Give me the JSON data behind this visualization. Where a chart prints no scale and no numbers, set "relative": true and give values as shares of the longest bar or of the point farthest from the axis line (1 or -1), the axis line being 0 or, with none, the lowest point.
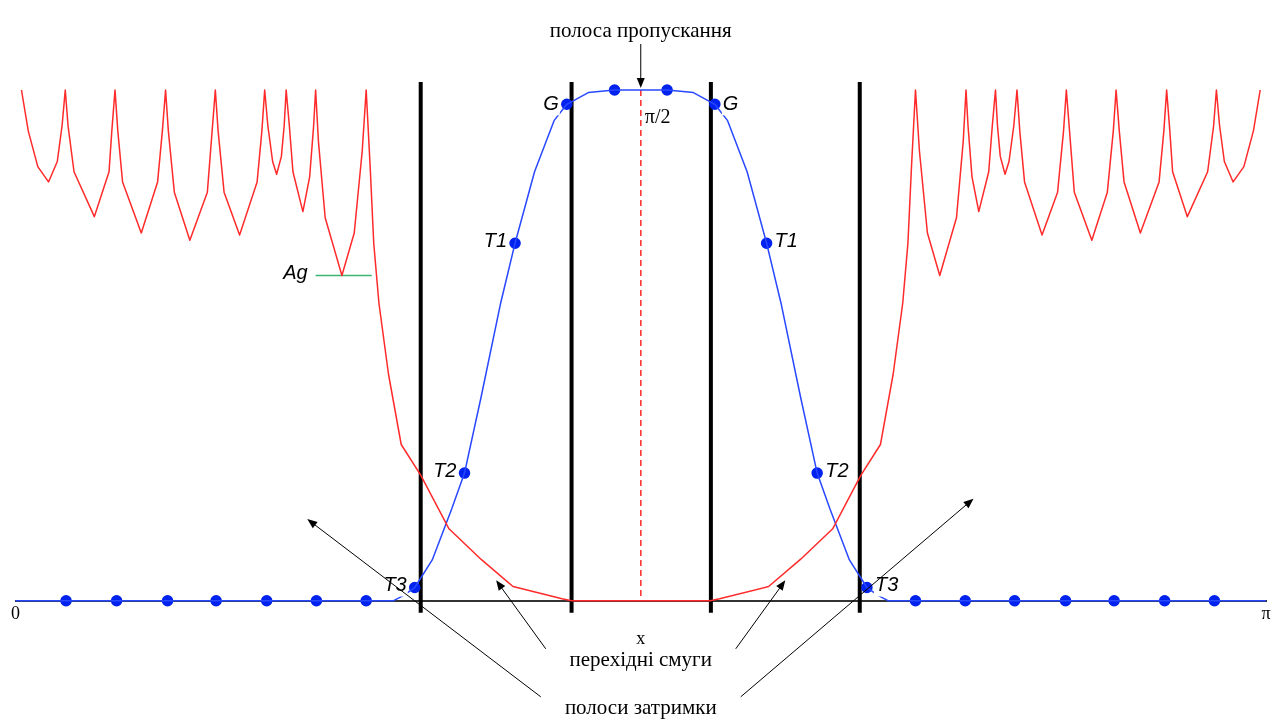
{
  "chart_data": {
    "type": "line",
    "relative": true,
    "xlabel": "x",
    "xlim": [
      0,
      3.1416
    ],
    "xticks": [
      {
        "value": 0,
        "label": "0"
      },
      {
        "value": 3.1416,
        "label": "π"
      }
    ],
    "grid": false,
    "legend": false,
    "series": [
      {
        "type": "line",
        "color": "#ff2a2a",
        "marker": "none",
        "x": [
          0.015,
          0.032,
          0.056,
          0.083,
          0.105,
          0.117,
          0.125,
          0.132,
          0.147,
          0.198,
          0.235,
          0.242,
          0.25,
          0.257,
          0.269,
          0.316,
          0.357,
          0.369,
          0.377,
          0.384,
          0.399,
          0.438,
          0.482,
          0.494,
          0.502,
          0.509,
          0.524,
          0.563,
          0.607,
          0.619,
          0.626,
          0.634,
          0.646,
          0.656,
          0.668,
          0.675,
          0.68,
          0.688,
          0.697,
          0.722,
          0.739,
          0.749,
          0.754,
          0.761,
          0.778,
          0.82,
          0.851,
          0.871,
          0.881,
          0.891,
          0.9,
          0.913,
          0.937,
          0.969,
          1.018,
          1.089,
          1.17,
          1.25,
          1.373,
          1.397,
          1.571,
          1.745,
          1.769,
          1.892,
          1.972,
          2.053,
          2.124,
          2.173,
          2.205,
          2.229,
          2.242,
          2.251,
          2.261,
          2.271,
          2.291,
          2.322,
          2.364,
          2.381,
          2.388,
          2.393,
          2.403,
          2.42,
          2.445,
          2.454,
          2.462,
          2.467,
          2.474,
          2.486,
          2.496,
          2.508,
          2.516,
          2.523,
          2.535,
          2.579,
          2.618,
          2.633,
          2.64,
          2.648,
          2.66,
          2.704,
          2.743,
          2.758,
          2.765,
          2.773,
          2.785,
          2.826,
          2.873,
          2.885,
          2.892,
          2.9,
          2.907,
          2.944,
          2.995,
          3.01,
          3.017,
          3.025,
          3.037,
          3.059,
          3.086,
          3.11,
          3.127
        ],
        "values": [
          1,
          0.92,
          0.85,
          0.82,
          0.86,
          0.93,
          1,
          0.93,
          0.84,
          0.752,
          0.84,
          0.92,
          1,
          0.92,
          0.82,
          0.72,
          0.82,
          0.92,
          1,
          0.92,
          0.8,
          0.706,
          0.8,
          0.92,
          1,
          0.92,
          0.8,
          0.716,
          0.82,
          0.92,
          1,
          0.93,
          0.86,
          0.835,
          0.87,
          0.93,
          1,
          0.93,
          0.84,
          0.762,
          0.83,
          0.93,
          1,
          0.9,
          0.75,
          0.637,
          0.72,
          0.88,
          1,
          0.85,
          0.7,
          0.583,
          0.444,
          0.306,
          0.246,
          0.141,
          0.081,
          0.028,
          0.004,
          0,
          0,
          0,
          0.004,
          0.028,
          0.081,
          0.141,
          0.246,
          0.306,
          0.444,
          0.583,
          0.7,
          0.85,
          1,
          0.88,
          0.72,
          0.637,
          0.75,
          0.9,
          1,
          0.93,
          0.83,
          0.762,
          0.84,
          0.93,
          1,
          0.93,
          0.87,
          0.835,
          0.86,
          0.93,
          1,
          0.92,
          0.82,
          0.716,
          0.8,
          0.92,
          1,
          0.92,
          0.8,
          0.706,
          0.8,
          0.92,
          1,
          0.92,
          0.82,
          0.72,
          0.82,
          0.92,
          1,
          0.92,
          0.84,
          0.752,
          0.84,
          0.93,
          1,
          0.93,
          0.86,
          0.82,
          0.85,
          0.92,
          1
        ]
      },
      {
        "type": "line",
        "color": "#2848ff",
        "marker": "none",
        "x": [
          0,
          0.949,
          0.974,
          1.003,
          1.047,
          1.096,
          1.128,
          1.17,
          1.218,
          1.255,
          1.304,
          1.353,
          1.385,
          1.439,
          1.505,
          1.571,
          1.637,
          1.703,
          1.757,
          1.789,
          1.838,
          1.887,
          1.924,
          1.972,
          2.014,
          2.046,
          2.095,
          2.139,
          2.168,
          2.193,
          3.141
        ],
        "values": [
          0,
          0,
          0.01,
          0.026,
          0.08,
          0.18,
          0.25,
          0.4,
          0.58,
          0.7,
          0.84,
          0.94,
          0.972,
          0.995,
          1,
          1,
          1,
          0.995,
          0.972,
          0.94,
          0.84,
          0.7,
          0.58,
          0.4,
          0.25,
          0.18,
          0.08,
          0.026,
          0.01,
          0,
          0
        ]
      },
      {
        "type": "scatter",
        "color": "#0022ee",
        "marker": "circle",
        "x": [
          0.127,
          0.254,
          0.382,
          0.504,
          0.631,
          0.756,
          0.881,
          1.003,
          1.128,
          1.255,
          1.385,
          1.505,
          1.637,
          1.757,
          1.887,
          2.014,
          2.139,
          2.261,
          2.386,
          2.51,
          2.638,
          2.76,
          2.887,
          3.012
        ],
        "values": [
          0,
          0,
          0,
          0,
          0,
          0,
          0,
          0.026,
          0.25,
          0.7,
          0.972,
          1,
          1,
          0.972,
          0.7,
          0.25,
          0.026,
          0,
          0,
          0,
          0,
          0,
          0,
          0
        ]
      },
      {
        "type": "line",
        "color": "#3cb371",
        "marker": "none",
        "x": [
          0.754,
          0.895
        ],
        "values": [
          0.637,
          0.637
        ]
      }
    ],
    "ref_lines": [
      {
        "axis": "x",
        "value": 1.018,
        "color": "#000000"
      },
      {
        "axis": "x",
        "value": 1.397,
        "color": "#000000"
      },
      {
        "axis": "x",
        "value": 1.571,
        "label": "π/2",
        "color": "#ff2a2a",
        "line_style": "dashed"
      },
      {
        "axis": "x",
        "value": 1.747,
        "color": "#000000"
      },
      {
        "axis": "x",
        "value": 2.121,
        "color": "#000000"
      }
    ],
    "annotations": [
      "полоса пропускання",
      "перехідні смуги",
      "полоси затримки",
      {
        "text": "Ag",
        "x": 0.754,
        "y": 0.637
      },
      {
        "text": "G",
        "x": 1.385,
        "y": 0.972
      },
      {
        "text": "T1",
        "x": 1.255,
        "y": 0.7
      },
      {
        "text": "T2",
        "x": 1.128,
        "y": 0.25
      },
      {
        "text": "T3",
        "x": 1.003,
        "y": 0.026
      },
      {
        "text": "G",
        "x": 1.757,
        "y": 0.972
      },
      {
        "text": "T1",
        "x": 1.887,
        "y": 0.7
      },
      {
        "text": "T2",
        "x": 2.014,
        "y": 0.25
      },
      {
        "text": "T3",
        "x": 2.139,
        "y": 0.026
      }
    ]
  }
}
